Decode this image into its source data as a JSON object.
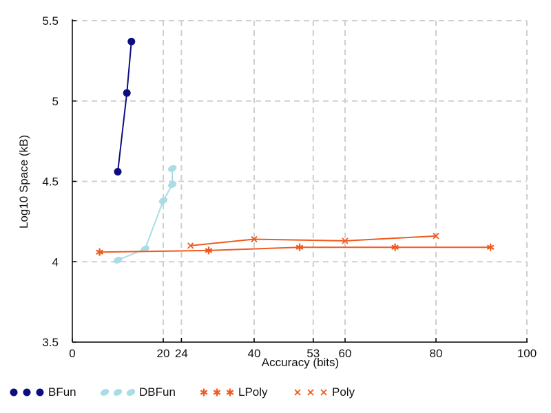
{
  "chart_data": {
    "type": "line",
    "xlabel": "Accuracy (bits)",
    "ylabel": "Log10 Space (kB)",
    "xlim": [
      0,
      100
    ],
    "ylim": [
      3.5,
      5.5
    ],
    "x_ticks": [
      0,
      20,
      24,
      40,
      53,
      60,
      80,
      100
    ],
    "y_ticks": [
      3.5,
      4,
      4.5,
      5,
      5.5
    ],
    "x_tick_labels": [
      "0",
      "20",
      "24",
      "40",
      "53",
      "60",
      "80",
      "100"
    ],
    "y_tick_labels": [
      "3.5",
      "4",
      "4.5",
      "5",
      "5.5"
    ],
    "grid": true,
    "legend_position": "bottom",
    "series": [
      {
        "name": "BFun",
        "color": "#0d0d80",
        "marker": "circle",
        "x": [
          10,
          12,
          13
        ],
        "y": [
          4.56,
          5.05,
          5.37
        ]
      },
      {
        "name": "DBFun",
        "color": "#a8dde6",
        "marker": "ellipse",
        "x": [
          10,
          16,
          20,
          22,
          22
        ],
        "y": [
          4.01,
          4.08,
          4.38,
          4.48,
          4.58
        ]
      },
      {
        "name": "LPoly",
        "color": "#f05a1e",
        "marker": "asterisk",
        "x": [
          6,
          30,
          50,
          71,
          92
        ],
        "y": [
          4.06,
          4.07,
          4.09,
          4.09,
          4.09
        ]
      },
      {
        "name": "Poly",
        "color": "#f05a1e",
        "marker": "x",
        "x": [
          26,
          40,
          60,
          80
        ],
        "y": [
          4.1,
          4.14,
          4.13,
          4.16
        ]
      }
    ]
  }
}
